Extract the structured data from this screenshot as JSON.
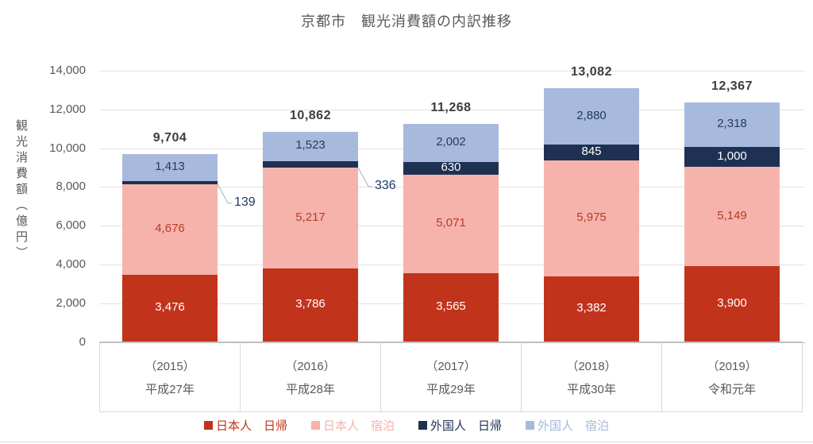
{
  "title": "京都市　観光消費額の内訳推移",
  "chart_data": {
    "type": "bar",
    "stacked": true,
    "title": "京都市　観光消費額の内訳推移",
    "ylabel": "観光消費額（億円）",
    "ylim": [
      0,
      14000
    ],
    "ytick_interval": 2000,
    "yticks": [
      "14,000",
      "12,000",
      "10,000",
      "8,000",
      "6,000",
      "4,000",
      "2,000",
      "0"
    ],
    "grid": true,
    "legend_position": "bottom",
    "categories": [
      {
        "year": "（2015）",
        "era": "平成27年"
      },
      {
        "year": "（2016）",
        "era": "平成28年"
      },
      {
        "year": "（2017）",
        "era": "平成29年"
      },
      {
        "year": "（2018）",
        "era": "平成30年"
      },
      {
        "year": "（2019）",
        "era": "令和元年"
      }
    ],
    "series": [
      {
        "name": "日本人　日帰",
        "color": "#c2331c",
        "label_color": "#ffffff",
        "values": [
          3476,
          3786,
          3565,
          3382,
          3900
        ]
      },
      {
        "name": "日本人　宿泊",
        "color": "#f5b3ac",
        "label_color": "#bb3a28",
        "values": [
          4676,
          5217,
          5071,
          5975,
          5149
        ]
      },
      {
        "name": "外国人　日帰",
        "color": "#1f3152",
        "label_color": "#ffffff",
        "values": [
          139,
          336,
          630,
          845,
          1000
        ],
        "callout_indices": [
          0,
          1
        ]
      },
      {
        "name": "外国人　宿泊",
        "color": "#a7b9dc",
        "label_color": "#243a5e",
        "values": [
          1413,
          1523,
          2002,
          2880,
          2318
        ]
      }
    ],
    "totals": [
      9704,
      10862,
      11268,
      13082,
      12367
    ],
    "callout_labels": [
      "139",
      "336"
    ]
  },
  "colors": {
    "title_text": "#595959",
    "axis_text": "#595959",
    "gridline": "#e2e2e2",
    "axis_line": "#bfbfbf",
    "table_border": "#d9d9d9",
    "total_text": "#3d3d3d",
    "callout_text": "#1f3864",
    "callout_line": "#a9afbb",
    "background": "#ffffff"
  }
}
